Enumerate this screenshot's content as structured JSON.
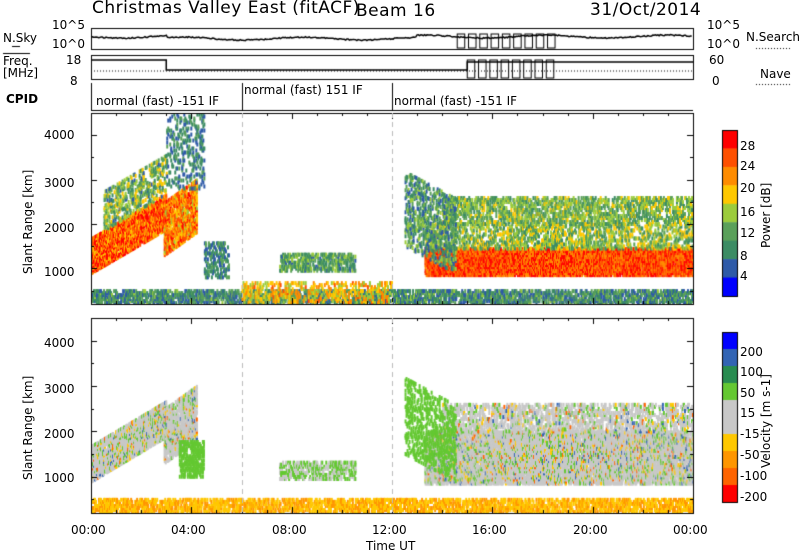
{
  "header": {
    "title": "Christmas Valley East (fitACF)",
    "beam": "Beam 16",
    "date": "31/Oct/2014"
  },
  "sidebar": {
    "nsky": "N.Sky",
    "freq": "Freq.",
    "mhz": "[MHz]",
    "cpid": "CPID",
    "nsearch": "N.Search",
    "nave": "Nave",
    "nsky_ticks": [
      "10^5",
      "10^0"
    ],
    "freq_ticks": [
      "18",
      "8"
    ],
    "nave_ticks": [
      "60",
      "0"
    ],
    "nsearch_ticks": [
      "10^5",
      "10^0"
    ]
  },
  "modes": [
    {
      "label": "normal (fast) -151 IF",
      "start": 0,
      "end": 6
    },
    {
      "label": "normal (fast) 151 IF",
      "start": 6,
      "end": 12
    },
    {
      "label": "normal (fast) -151 IF",
      "start": 12,
      "end": 24
    }
  ],
  "colors": {
    "power": [
      "#0000ff",
      "#2e5aa8",
      "#3c8c64",
      "#5aa05a",
      "#9ccc3c",
      "#ffc800",
      "#ff8c00",
      "#ff5000",
      "#ff0000"
    ],
    "velocity": [
      "#ff0000",
      "#ff6400",
      "#ff9600",
      "#ffc800",
      "#c8c8c8",
      "#c8c8c8",
      "#64c832",
      "#288c50",
      "#3264b4",
      "#0000ff"
    ]
  },
  "chart_data": [
    {
      "type": "heatmap",
      "ylabel": "Slant Range [km]",
      "xlabel": "Time UT",
      "colorbar_label": "Power [dB]",
      "colorbar_ticks": [
        "4",
        "8",
        "12",
        "16",
        "20",
        "24",
        "28"
      ],
      "colorbar_range": [
        0,
        30
      ],
      "xlim": [
        0,
        24
      ],
      "ylim": [
        200,
        4500
      ],
      "x_ticks": [
        "00:00",
        "04:00",
        "08:00",
        "12:00",
        "16:00",
        "20:00",
        "00:00"
      ],
      "y_ticks": [
        "1000",
        "2000",
        "3000",
        "4000"
      ],
      "features": [
        {
          "name": "early-band",
          "t": [
            0,
            3
          ],
          "range": [
            950,
            2400
          ],
          "slope": true,
          "level": 26
        },
        {
          "name": "band-2",
          "t": [
            2.9,
            4.2
          ],
          "range": [
            1300,
            2500
          ],
          "level": 20
        },
        {
          "name": "main-band",
          "t": [
            13.5,
            24
          ],
          "range": [
            900,
            1400
          ],
          "level": 27
        },
        {
          "name": "upper-band",
          "t": [
            14,
            24
          ],
          "range": [
            2000,
            2500
          ],
          "level": 14
        },
        {
          "name": "mid-patch",
          "t": [
            7.5,
            10.5
          ],
          "range": [
            950,
            1350
          ],
          "level": 10
        },
        {
          "name": "ground-band",
          "t": [
            0,
            24
          ],
          "range": [
            250,
            500
          ],
          "level": 8
        }
      ]
    },
    {
      "type": "heatmap",
      "ylabel": "Slant Range [km]",
      "xlabel": "Time UT",
      "colorbar_label": "Velocity [m s-1]",
      "colorbar_ticks": [
        "-200",
        "-100",
        "-50",
        "-15",
        "15",
        "50",
        "100",
        "200"
      ],
      "colorbar_range": [
        -250,
        250
      ],
      "xlim": [
        0,
        24
      ],
      "ylim": [
        200,
        4500
      ],
      "x_ticks": [
        "00:00",
        "04:00",
        "08:00",
        "12:00",
        "16:00",
        "20:00",
        "00:00"
      ],
      "y_ticks": [
        "1000",
        "2000",
        "3000",
        "4000"
      ]
    }
  ]
}
